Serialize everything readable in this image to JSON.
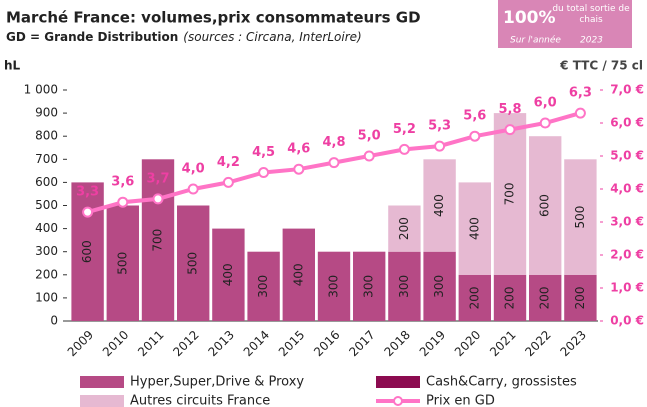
{
  "chart_data": {
    "type": "bar_line",
    "title": "Marché France: volumes,prix consommateurs GD",
    "subtitle": "GD = Grande Distribution",
    "source": "(sources : Circana, InterLoire)",
    "y_label": "hL",
    "y2_label": "€ TTC / 75 cl",
    "badge": {
      "big": "100%",
      "text": "du total sortie de chais",
      "period": "Sur l'année",
      "year": "2023"
    },
    "categories": [
      "2009",
      "2010",
      "2011",
      "2012",
      "2013",
      "2014",
      "2015",
      "2016",
      "2017",
      "2018",
      "2019",
      "2020",
      "2021",
      "2022",
      "2023"
    ],
    "series": [
      {
        "name": "Hyper,Super,Drive & Proxy",
        "color": "#b64a85",
        "values": [
          600,
          500,
          700,
          500,
          400,
          300,
          400,
          300,
          300,
          300,
          300,
          200,
          200,
          200,
          200
        ]
      },
      {
        "name": "Cash&Carry, grossistes",
        "color": "#8c0b50",
        "values": [
          null,
          null,
          null,
          null,
          null,
          null,
          null,
          null,
          null,
          null,
          null,
          null,
          null,
          null,
          null
        ]
      },
      {
        "name": "Autres circuits France",
        "color": "#e6b9d2",
        "values": [
          null,
          null,
          null,
          null,
          null,
          null,
          null,
          null,
          null,
          200,
          400,
          400,
          700,
          600,
          500
        ]
      },
      {
        "name": "Prix en GD",
        "color": "#ff74c6",
        "axis": "y2",
        "values": [
          3.3,
          3.6,
          3.7,
          4.0,
          4.2,
          4.5,
          4.6,
          4.8,
          5.0,
          5.2,
          5.3,
          5.6,
          5.8,
          6.0,
          6.3
        ],
        "value_labels": [
          "3,3",
          "3,6",
          "3,7",
          "4,0",
          "4,2",
          "4,5",
          "4,6",
          "4,8",
          "5,0",
          "5,2",
          "5,3",
          "5,6",
          "5,8",
          "6,0",
          "6,3"
        ]
      }
    ],
    "ylim": [
      0,
      1000
    ],
    "yticks": [
      0,
      100,
      200,
      300,
      400,
      500,
      600,
      700,
      800,
      900,
      {
        "value": 1000,
        "label": "1 000"
      }
    ],
    "y2lim": [
      0,
      7
    ],
    "y2ticks": [
      {
        "value": 0,
        "label": "0,0 €"
      },
      {
        "value": 1,
        "label": "1,0 €"
      },
      {
        "value": 2,
        "label": "2,0 €"
      },
      {
        "value": 3,
        "label": "3,0 €"
      },
      {
        "value": 4,
        "label": "4,0 €"
      },
      {
        "value": 5,
        "label": "5,0 €"
      },
      {
        "value": 6,
        "label": "6,0 €"
      },
      {
        "value": 7,
        "label": "7,0 €"
      }
    ]
  }
}
